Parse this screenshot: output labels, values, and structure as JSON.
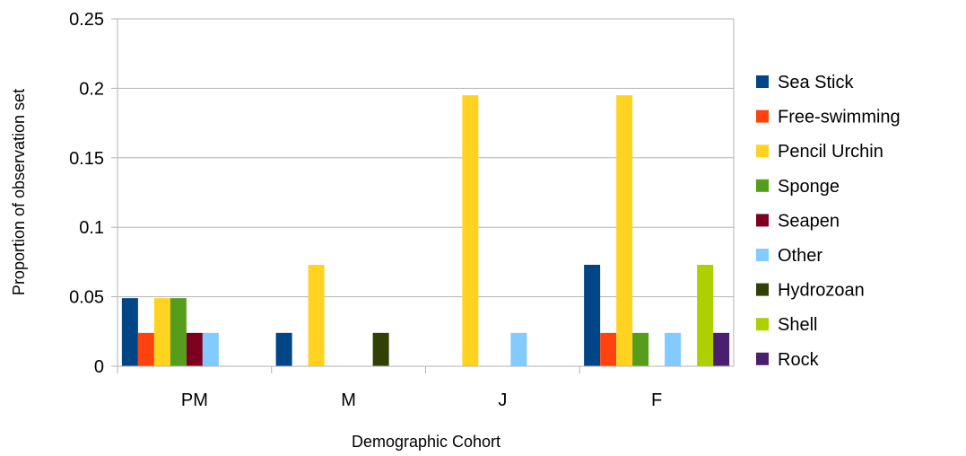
{
  "chart_data": {
    "type": "bar",
    "title": "",
    "xlabel": "Demographic Cohort",
    "ylabel": "Proportion of observation set",
    "categories": [
      "PM",
      "M",
      "J",
      "F"
    ],
    "ylim": [
      0,
      0.25
    ],
    "yticks": [
      "0",
      "0.05",
      "0.1",
      "0.15",
      "0.2",
      "0.25"
    ],
    "grid": true,
    "legend_position": "right",
    "series": [
      {
        "name": "Sea Stick",
        "color": "#004586",
        "values": [
          0.049,
          0.024,
          0,
          0.073
        ]
      },
      {
        "name": "Free-swimming",
        "color": "#ff420e",
        "values": [
          0.024,
          0,
          0,
          0.024
        ]
      },
      {
        "name": "Pencil Urchin",
        "color": "#ffd320",
        "values": [
          0.049,
          0.073,
          0.195,
          0.195
        ]
      },
      {
        "name": "Sponge",
        "color": "#579d1c",
        "values": [
          0.049,
          0,
          0,
          0.024
        ]
      },
      {
        "name": "Seapen",
        "color": "#7e0021",
        "values": [
          0.024,
          0,
          0,
          0
        ]
      },
      {
        "name": "Other",
        "color": "#83caff",
        "values": [
          0.024,
          0,
          0.024,
          0.024
        ]
      },
      {
        "name": "Hydrozoan",
        "color": "#314004",
        "values": [
          0,
          0.024,
          0,
          0
        ]
      },
      {
        "name": "Shell",
        "color": "#aecf00",
        "values": [
          0,
          0,
          0,
          0.073
        ]
      },
      {
        "name": "Rock",
        "color": "#4b1f6f",
        "values": [
          0,
          0,
          0,
          0.024
        ]
      }
    ]
  }
}
